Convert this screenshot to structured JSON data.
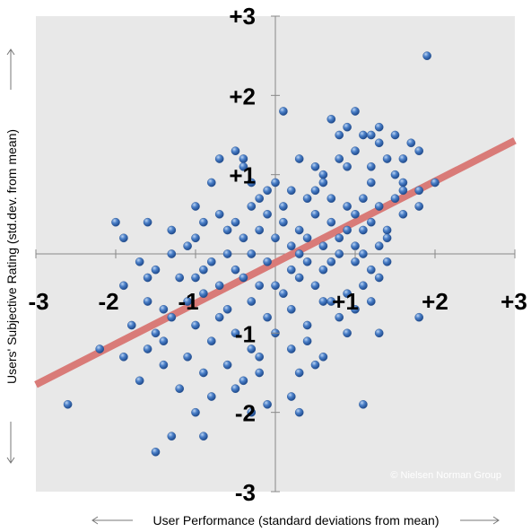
{
  "chart_data": {
    "type": "scatter",
    "title": "",
    "xlabel": "User Performance (standard deviations from mean)",
    "ylabel": "Users'  Subjective Rating (std.dev. from mean)",
    "xlim": [
      -3,
      3
    ],
    "ylim": [
      -3,
      3
    ],
    "x_ticks": [
      "-3",
      "-2",
      "-1",
      "+1",
      "+2",
      "+3"
    ],
    "y_ticks": [
      "+3",
      "+2",
      "+1",
      "-1",
      "-2",
      "-3"
    ],
    "grid": false,
    "watermark": "© Nielsen Norman Group",
    "colors": {
      "plot_bg": "#e8e8e8",
      "point": "#3c6fb8",
      "trend": "#d97b78",
      "axis": "#888888"
    },
    "trend_line": {
      "x": [
        -3,
        3
      ],
      "y": [
        -1.65,
        1.43
      ]
    },
    "points": [
      [
        1.9,
        2.5
      ],
      [
        0.1,
        1.8
      ],
      [
        1.0,
        1.8
      ],
      [
        0.7,
        1.7
      ],
      [
        0.8,
        1.5
      ],
      [
        1.1,
        1.5
      ],
      [
        1.2,
        1.5
      ],
      [
        1.3,
        1.4
      ],
      [
        1.5,
        1.5
      ],
      [
        1.7,
        1.4
      ],
      [
        1.3,
        1.6
      ],
      [
        0.9,
        1.6
      ],
      [
        1.0,
        1.3
      ],
      [
        1.4,
        1.2
      ],
      [
        1.6,
        1.2
      ],
      [
        1.8,
        1.3
      ],
      [
        -0.5,
        1.3
      ],
      [
        -0.4,
        1.2
      ],
      [
        -0.7,
        1.2
      ],
      [
        -0.4,
        1.1
      ],
      [
        0.3,
        1.2
      ],
      [
        0.5,
        1.1
      ],
      [
        0.6,
        1.0
      ],
      [
        0.8,
        1.2
      ],
      [
        0.9,
        1.1
      ],
      [
        1.2,
        1.1
      ],
      [
        1.5,
        1.0
      ],
      [
        1.6,
        0.9
      ],
      [
        1.8,
        0.8
      ],
      [
        2.0,
        0.9
      ],
      [
        -0.8,
        0.9
      ],
      [
        -0.3,
        0.9
      ],
      [
        -0.1,
        0.8
      ],
      [
        0.0,
        0.9
      ],
      [
        0.2,
        0.8
      ],
      [
        0.4,
        0.7
      ],
      [
        0.5,
        0.8
      ],
      [
        0.7,
        0.7
      ],
      [
        0.9,
        0.6
      ],
      [
        1.1,
        0.7
      ],
      [
        1.3,
        0.6
      ],
      [
        1.5,
        0.7
      ],
      [
        1.6,
        0.5
      ],
      [
        1.8,
        0.6
      ],
      [
        -1.0,
        0.6
      ],
      [
        -0.7,
        0.5
      ],
      [
        -0.5,
        0.4
      ],
      [
        -0.3,
        0.6
      ],
      [
        -0.1,
        0.5
      ],
      [
        0.1,
        0.4
      ],
      [
        0.3,
        0.3
      ],
      [
        0.5,
        0.5
      ],
      [
        0.7,
        0.4
      ],
      [
        0.9,
        0.3
      ],
      [
        1.0,
        0.5
      ],
      [
        1.2,
        0.4
      ],
      [
        1.4,
        0.3
      ],
      [
        -1.6,
        0.4
      ],
      [
        -1.3,
        0.3
      ],
      [
        -1.0,
        0.2
      ],
      [
        -0.9,
        0.4
      ],
      [
        -0.6,
        0.3
      ],
      [
        -0.4,
        0.2
      ],
      [
        -0.2,
        0.3
      ],
      [
        0.0,
        0.2
      ],
      [
        0.2,
        0.1
      ],
      [
        0.4,
        0.2
      ],
      [
        0.6,
        0.1
      ],
      [
        0.8,
        0.2
      ],
      [
        1.0,
        0.1
      ],
      [
        1.1,
        0.3
      ],
      [
        1.3,
        0.1
      ],
      [
        1.4,
        0.2
      ],
      [
        -2.0,
        0.4
      ],
      [
        -1.9,
        0.2
      ],
      [
        -1.3,
        0.0
      ],
      [
        -1.1,
        0.1
      ],
      [
        -0.8,
        -0.1
      ],
      [
        -0.6,
        0.0
      ],
      [
        -0.3,
        0.0
      ],
      [
        -0.1,
        -0.1
      ],
      [
        0.2,
        -0.2
      ],
      [
        0.4,
        -0.1
      ],
      [
        0.6,
        -0.2
      ],
      [
        0.8,
        0.0
      ],
      [
        1.0,
        -0.1
      ],
      [
        1.2,
        -0.2
      ],
      [
        1.4,
        -0.1
      ],
      [
        -1.7,
        -0.1
      ],
      [
        -1.5,
        -0.2
      ],
      [
        -1.2,
        -0.3
      ],
      [
        -0.9,
        -0.2
      ],
      [
        -0.7,
        -0.4
      ],
      [
        -0.4,
        -0.3
      ],
      [
        -0.2,
        -0.4
      ],
      [
        0.1,
        -0.5
      ],
      [
        0.3,
        -0.3
      ],
      [
        0.5,
        -0.4
      ],
      [
        0.7,
        -0.6
      ],
      [
        0.9,
        -0.5
      ],
      [
        1.1,
        -0.4
      ],
      [
        1.3,
        -0.3
      ],
      [
        -1.6,
        -0.6
      ],
      [
        -1.4,
        -0.7
      ],
      [
        -1.1,
        -0.6
      ],
      [
        -0.9,
        -0.5
      ],
      [
        -0.6,
        -0.7
      ],
      [
        -0.3,
        -0.6
      ],
      [
        -0.1,
        -0.8
      ],
      [
        0.2,
        -0.7
      ],
      [
        0.4,
        -0.9
      ],
      [
        0.6,
        -0.6
      ],
      [
        0.8,
        -0.8
      ],
      [
        1.0,
        -0.7
      ],
      [
        1.2,
        -0.6
      ],
      [
        -1.8,
        -0.9
      ],
      [
        -1.5,
        -1.0
      ],
      [
        -1.3,
        -0.8
      ],
      [
        -1.0,
        -0.9
      ],
      [
        -0.8,
        -1.1
      ],
      [
        -0.5,
        -1.0
      ],
      [
        -0.3,
        -1.2
      ],
      [
        0.0,
        -1.0
      ],
      [
        0.2,
        -1.2
      ],
      [
        0.4,
        -1.1
      ],
      [
        0.6,
        -1.3
      ],
      [
        1.3,
        -1.0
      ],
      [
        1.8,
        -0.8
      ],
      [
        -2.2,
        -1.2
      ],
      [
        -1.9,
        -1.3
      ],
      [
        -1.6,
        -1.2
      ],
      [
        -1.4,
        -1.4
      ],
      [
        -1.1,
        -1.3
      ],
      [
        -0.9,
        -1.5
      ],
      [
        -0.6,
        -1.4
      ],
      [
        -0.4,
        -1.6
      ],
      [
        -0.2,
        -1.3
      ],
      [
        0.3,
        -1.5
      ],
      [
        0.5,
        -1.4
      ],
      [
        -1.7,
        -1.6
      ],
      [
        -1.2,
        -1.7
      ],
      [
        -0.8,
        -1.8
      ],
      [
        -0.5,
        -1.7
      ],
      [
        -0.1,
        -1.9
      ],
      [
        0.2,
        -1.8
      ],
      [
        1.1,
        -1.9
      ],
      [
        -2.6,
        -1.9
      ],
      [
        -1.3,
        -2.3
      ],
      [
        -1.0,
        -2.0
      ],
      [
        -0.9,
        -2.3
      ],
      [
        -1.5,
        -2.5
      ],
      [
        0.3,
        -2.0
      ],
      [
        -0.3,
        -2.0
      ],
      [
        -1.9,
        -0.4
      ],
      [
        -1.6,
        -0.3
      ],
      [
        -0.2,
        0.7
      ],
      [
        0.1,
        0.6
      ],
      [
        0.6,
        0.9
      ],
      [
        1.2,
        0.9
      ],
      [
        1.6,
        0.8
      ],
      [
        -1.0,
        -0.3
      ],
      [
        -0.5,
        -0.2
      ],
      [
        0.3,
        0.0
      ],
      [
        0.7,
        -0.1
      ],
      [
        1.1,
        0.0
      ],
      [
        -0.7,
        -0.8
      ],
      [
        0.0,
        -0.4
      ],
      [
        0.9,
        -1.0
      ],
      [
        -1.4,
        -1.1
      ],
      [
        -0.2,
        -1.5
      ]
    ]
  }
}
